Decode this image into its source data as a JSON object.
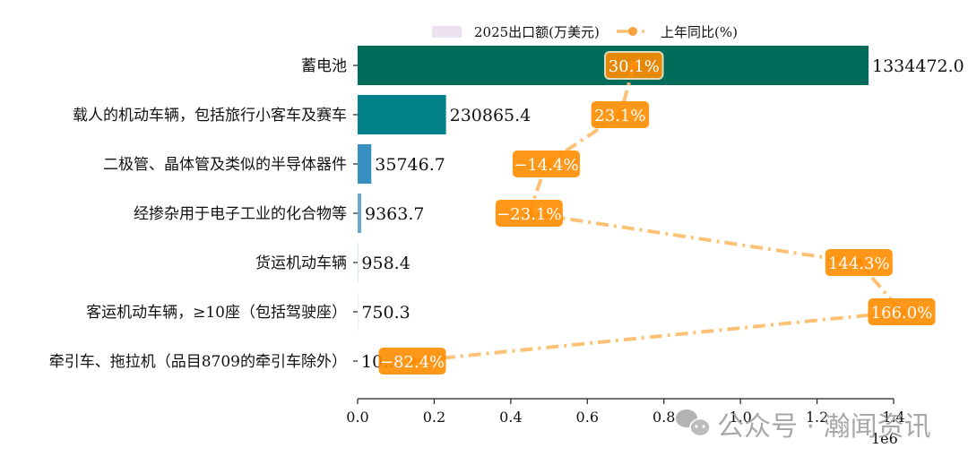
{
  "chart_data": {
    "type": "bar",
    "orientation": "horizontal",
    "title": "",
    "xlabel": "",
    "ylabel": "",
    "x_offset_label": "1e6",
    "xlim": [
      0,
      1400000
    ],
    "xticks": [
      "0.0",
      "0.2",
      "0.4",
      "0.6",
      "0.8",
      "1.0",
      "1.2",
      "1.4"
    ],
    "grid": false,
    "legend_position": "top-center",
    "categories": [
      "蓄电池",
      "载人的机动车辆，包括旅行小客车及赛车",
      "二极管、晶体管及类似的半导体器件",
      "经掺杂用于电子工业的化合物等",
      "货运机动车辆",
      "客运机动车辆，≥10座（包括驾驶座）",
      "牵引车、拖拉机（品目8709的牵引车除外）"
    ],
    "series": [
      {
        "name": "2025出口额(万美元)",
        "type": "bar",
        "values": [
          1334472.0,
          230865.4,
          35746.7,
          9363.7,
          958.4,
          750.3,
          10.0
        ],
        "value_labels": [
          "1334472.0",
          "230865.4",
          "35746.7",
          "9363.7",
          "958.4",
          "750.3",
          "10…"
        ],
        "colors": [
          "#016c59",
          "#02818a",
          "#3690c0",
          "#67a9cf",
          "#a6bddb",
          "#d0d1e6",
          "#ece2f0"
        ]
      },
      {
        "name": "上年同比(%)",
        "type": "line",
        "axis": "secondary",
        "values": [
          30.1,
          23.1,
          -14.4,
          -23.1,
          144.3,
          166.0,
          -82.4
        ],
        "value_labels": [
          "30.1%",
          "23.1%",
          "−14.4%",
          "−23.1%",
          "144.3%",
          "166.0%",
          "−82.4%"
        ],
        "line_color": "#fdbf6f",
        "label_bg": "#ff8c00",
        "line_style": "dash-dot"
      }
    ]
  },
  "legend": {
    "bar_label": "2025出口额(万美元)",
    "line_label": "上年同比(%)",
    "bar_patch_color": "#ece2f0",
    "line_color": "#fdbf6f",
    "marker_color": "#ff8c00"
  },
  "watermark": {
    "text": "公众号 · 瀚闻资讯",
    "icon": "wechat-icon"
  }
}
